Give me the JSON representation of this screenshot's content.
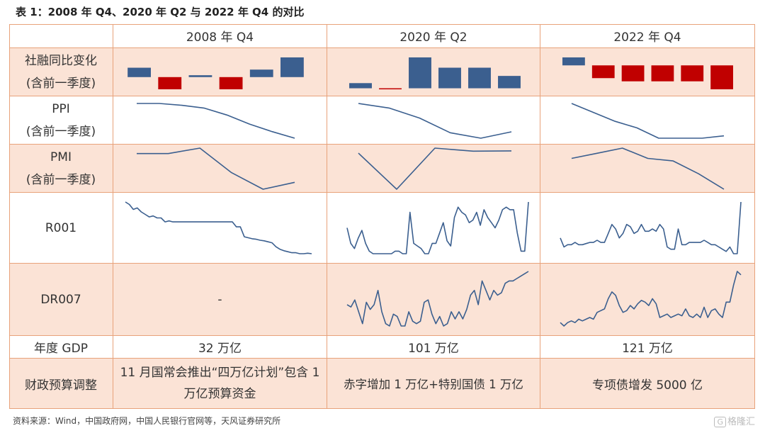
{
  "title": "表 1：2008 年 Q4、2020 年 Q2 与 2022 年 Q4 的对比",
  "columns": [
    "2008 年 Q4",
    "2020 年 Q2",
    "2022 年 Q4"
  ],
  "rows": {
    "tsf": {
      "label_1": "社融同比变化",
      "label_2": "(含前一季度)"
    },
    "ppi": {
      "label_1": "PPI",
      "label_2": "(含前一季度)"
    },
    "pmi": {
      "label_1": "PMI",
      "label_2": "(含前一季度)"
    },
    "r001": {
      "label": "R001"
    },
    "dr007": {
      "label": "DR007",
      "col1_value": "-"
    },
    "gdp": {
      "label": "年度 GDP",
      "values": [
        "32 万亿",
        "101 万亿",
        "121 万亿"
      ]
    },
    "fiscal": {
      "label": "财政预算调整",
      "values": [
        "11 月国常会推出“四万亿计划”包含 1 万亿预算资金",
        "赤字增加 1 万亿+特别国债 1 万亿",
        "专项债增发 5000 亿"
      ]
    }
  },
  "colors": {
    "positive": "#3b5f8f",
    "negative": "#c00000",
    "line": "#3b5f8f",
    "shade": "#fbe3d6",
    "border": "#e8a27a"
  },
  "source": "资料来源：Wind，中国政府网，中国人民银行官网等，天风证券研究所",
  "watermark": {
    "icon": "G",
    "text": "格隆汇"
  },
  "chart_data": [
    {
      "type": "bar",
      "row": "社融同比变化",
      "panel": "2008 年 Q4",
      "values": [
        1.0,
        -1.3,
        0.2,
        -1.3,
        0.8,
        2.1
      ]
    },
    {
      "type": "bar",
      "row": "社融同比变化",
      "panel": "2020 年 Q2",
      "values": [
        0.5,
        -0.1,
        3.0,
        2.0,
        2.0,
        1.2
      ]
    },
    {
      "type": "bar",
      "row": "社融同比变化",
      "panel": "2022 年 Q4",
      "values": [
        0.5,
        -0.8,
        -1.0,
        -1.0,
        -1.0,
        -1.5
      ]
    },
    {
      "type": "line",
      "row": "PPI",
      "panel": "2008 年 Q4",
      "values": [
        10,
        10,
        9.4,
        8.5,
        6.3,
        3.4,
        1.0,
        -1.1
      ]
    },
    {
      "type": "line",
      "row": "PPI",
      "panel": "2020 年 Q2",
      "values": [
        0.1,
        -0.4,
        -1.5,
        -3.1,
        -3.7,
        -3.0
      ]
    },
    {
      "type": "line",
      "row": "PPI",
      "panel": "2022 年 Q4",
      "values": [
        6.1,
        4.2,
        2.3,
        0.9,
        -1.3,
        -1.3,
        -1.3,
        -0.8
      ]
    },
    {
      "type": "line",
      "row": "PMI",
      "panel": "2008 年 Q4",
      "values": [
        51.3,
        51.3,
        53.2,
        44.6,
        38.8,
        41.2
      ]
    },
    {
      "type": "line",
      "row": "PMI",
      "panel": "2020 年 Q2",
      "values": [
        50.0,
        35.7,
        52.0,
        50.8,
        50.9
      ]
    },
    {
      "type": "line",
      "row": "PMI",
      "panel": "2022 年 Q4",
      "values": [
        49.4,
        49.8,
        50.2,
        49.4,
        49.2,
        48.2,
        47.0
      ]
    },
    {
      "type": "line",
      "row": "R001",
      "panel": "2008 年 Q4",
      "values": [
        2.5,
        2.45,
        2.35,
        2.38,
        2.3,
        2.25,
        2.2,
        2.22,
        2.18,
        2.18,
        2.1,
        2.12,
        2.1,
        2.1,
        2.1,
        2.1,
        2.1,
        2.1,
        2.1,
        2.1,
        2.1,
        2.1,
        2.1,
        2.1,
        2.1,
        2.1,
        2.1,
        2.1,
        2.0,
        2.0,
        1.8,
        1.78,
        1.76,
        1.75,
        1.73,
        1.72,
        1.7,
        1.68,
        1.6,
        1.55,
        1.52,
        1.5,
        1.48,
        1.48,
        1.46,
        1.46,
        1.47,
        1.46
      ]
    },
    {
      "type": "line",
      "row": "R001",
      "panel": "2020 年 Q2",
      "values": [
        1.6,
        1.0,
        0.8,
        1.2,
        1.5,
        1.0,
        0.7,
        0.6,
        0.6,
        0.6,
        0.6,
        0.6,
        0.6,
        0.7,
        0.7,
        0.6,
        0.6,
        2.2,
        1.0,
        0.9,
        0.8,
        0.6,
        0.6,
        1.0,
        1.0,
        1.4,
        1.8,
        1.1,
        0.9,
        2.0,
        2.4,
        2.2,
        2.1,
        1.8,
        1.9,
        2.2,
        1.7,
        2.3,
        2.0,
        1.8,
        1.6,
        1.9,
        2.3,
        2.4,
        2.3,
        2.3,
        1.4,
        0.7,
        0.7,
        2.6
      ]
    },
    {
      "type": "line",
      "row": "R001",
      "panel": "2022 年 Q4",
      "values": [
        1.3,
        0.9,
        1.0,
        1.0,
        1.1,
        1.0,
        1.0,
        1.05,
        1.1,
        1.1,
        1.2,
        1.1,
        1.1,
        1.5,
        1.9,
        1.7,
        1.3,
        1.5,
        1.9,
        1.8,
        1.5,
        1.6,
        1.9,
        1.6,
        1.6,
        1.7,
        1.6,
        1.9,
        1.7,
        0.9,
        0.8,
        0.8,
        1.7,
        1.0,
        1.0,
        1.1,
        1.1,
        1.1,
        1.1,
        1.2,
        1.1,
        1.0,
        1.0,
        0.9,
        0.8,
        0.7,
        0.9,
        0.6,
        0.6,
        2.9
      ]
    },
    {
      "type": "line",
      "row": "DR007",
      "panel": "2020 年 Q2",
      "values": [
        1.9,
        1.85,
        2.0,
        1.75,
        1.5,
        1.95,
        1.8,
        1.9,
        2.2,
        1.75,
        1.5,
        1.45,
        1.7,
        1.65,
        1.45,
        1.45,
        1.75,
        1.55,
        1.5,
        1.55,
        1.95,
        2.0,
        1.7,
        1.5,
        1.65,
        1.45,
        1.5,
        1.75,
        1.6,
        1.75,
        1.6,
        1.8,
        2.1,
        2.2,
        1.9,
        2.4,
        2.2,
        2.0,
        2.2,
        2.1,
        2.15,
        2.35,
        2.4,
        2.4,
        2.45,
        2.5,
        2.55,
        2.6
      ]
    },
    {
      "type": "line",
      "row": "DR007",
      "panel": "2022 年 Q4",
      "values": [
        1.5,
        1.4,
        1.5,
        1.55,
        1.5,
        1.6,
        1.55,
        1.6,
        1.65,
        1.6,
        1.8,
        1.85,
        1.9,
        2.2,
        2.4,
        2.3,
        2.0,
        1.8,
        1.85,
        2.0,
        1.9,
        2.05,
        2.15,
        2.1,
        2.0,
        2.2,
        2.05,
        1.65,
        1.7,
        1.75,
        1.65,
        1.7,
        1.75,
        1.7,
        1.9,
        1.7,
        1.65,
        1.75,
        1.65,
        1.95,
        1.65,
        1.85,
        1.9,
        1.75,
        1.65,
        2.1,
        2.1,
        2.6,
        3.0,
        2.9
      ]
    }
  ]
}
